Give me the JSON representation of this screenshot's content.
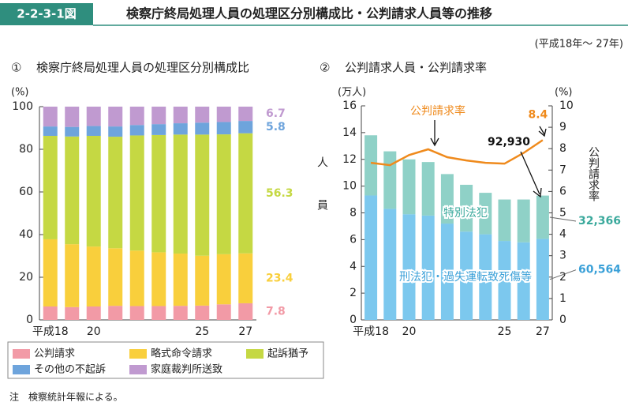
{
  "header": {
    "figure_no": "2-2-3-1図",
    "title": "検察庁終局処理人員の処理区分別構成比・公判請求人員等の推移",
    "period": "(平成18年～ 27年)"
  },
  "chart_data": [
    {
      "type": "bar",
      "stacked": true,
      "number": "①",
      "title": "検察庁終局処理人員の処理区分別構成比",
      "ylabel": "(%)",
      "categories": [
        "平成18",
        null,
        "20",
        null,
        null,
        null,
        null,
        "25",
        null,
        "27"
      ],
      "ylim": [
        0,
        100
      ],
      "yticks": [
        0,
        20,
        40,
        60,
        80,
        100
      ],
      "series": [
        {
          "name": "公判請求",
          "color": "#f29aa6",
          "values": [
            6.3,
            6.0,
            6.3,
            6.6,
            6.5,
            6.5,
            6.6,
            6.7,
            7.3,
            7.8
          ]
        },
        {
          "name": "略式命令請求",
          "color": "#f9cf3c",
          "values": [
            31.5,
            29.5,
            28.1,
            27.0,
            26.0,
            25.2,
            24.5,
            23.4,
            23.5,
            23.4
          ]
        },
        {
          "name": "起訴猶予",
          "color": "#c5d843",
          "values": [
            48.5,
            50.5,
            51.9,
            52.3,
            54.0,
            55.0,
            55.8,
            56.8,
            56.2,
            56.3
          ]
        },
        {
          "name": "その他の不起訴",
          "color": "#6ea4dc",
          "values": [
            4.4,
            4.5,
            4.6,
            4.8,
            4.9,
            5.1,
            5.3,
            5.6,
            5.8,
            5.8
          ]
        },
        {
          "name": "家庭裁判所送致",
          "color": "#c09ad0",
          "values": [
            9.3,
            9.5,
            9.1,
            9.3,
            8.6,
            8.2,
            7.8,
            7.5,
            7.2,
            6.7
          ]
        }
      ]
    },
    {
      "type": "bar",
      "stacked": true,
      "number": "②",
      "title": "公判請求人員・公判請求率",
      "ylabel": "(万人)",
      "y2label": "(%)",
      "yaxis_title": "人員",
      "y2axis_title": "公判請求率",
      "categories": [
        "平成18",
        null,
        "20",
        null,
        null,
        null,
        null,
        "25",
        null,
        "27"
      ],
      "ylim": [
        0,
        16
      ],
      "yticks": [
        0,
        2,
        4,
        6,
        8,
        10,
        12,
        14,
        16
      ],
      "y2lim": [
        0,
        10
      ],
      "y2ticks": [
        0,
        1,
        2,
        3,
        4,
        5,
        6,
        7,
        8,
        9,
        10
      ],
      "series": [
        {
          "name": "刑法犯・過失運転致死傷等",
          "color": "#7cc8ee",
          "values": [
            9.3,
            8.3,
            7.9,
            7.8,
            7.2,
            6.6,
            6.4,
            5.9,
            5.8,
            6.0564
          ],
          "value_labels": [
            null,
            null,
            null,
            null,
            null,
            null,
            null,
            null,
            null,
            "60,564"
          ]
        },
        {
          "name": "特別法犯",
          "color": "#8fd1c7",
          "values": [
            4.5,
            4.3,
            4.1,
            4.0,
            3.7,
            3.5,
            3.1,
            3.1,
            3.2,
            3.2366
          ],
          "value_labels": [
            null,
            null,
            null,
            null,
            null,
            null,
            null,
            null,
            null,
            "32,366"
          ]
        },
        {
          "name": "公判請求率",
          "type": "line",
          "axis": "y2",
          "color": "#ef8a1c",
          "values": [
            7.34,
            7.23,
            7.7,
            7.97,
            7.6,
            7.45,
            7.34,
            7.3,
            7.8,
            8.4
          ]
        }
      ],
      "annotations": [
        "公判請求率",
        "92,930",
        "特別法犯",
        "刑法犯・過失運転致死傷等"
      ]
    }
  ],
  "note": "注　検察統計年報による。"
}
